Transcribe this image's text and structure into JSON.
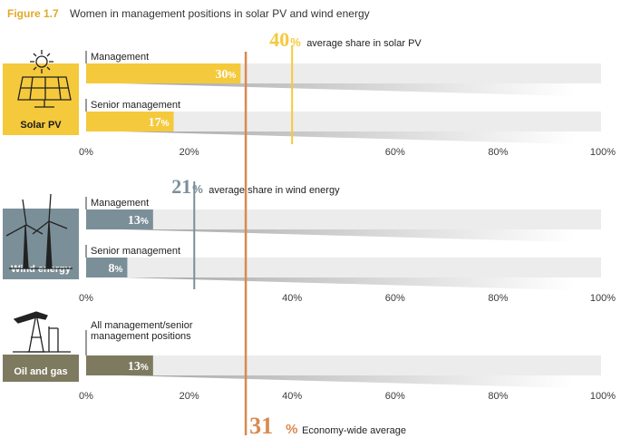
{
  "figure_label": "Figure 1.7",
  "title": "Women in management positions in solar PV and wind energy",
  "colors": {
    "solar": "#f5c93c",
    "wind": "#7b8f99",
    "oil": "#7d7a60",
    "economy": "#d98a4f",
    "track": "#ececec",
    "shadow": "#9a9a9a",
    "axis_text": "#3a3a3a"
  },
  "chart_data": {
    "type": "bar",
    "orientation": "horizontal",
    "xlim": [
      0,
      100
    ],
    "ticks": [
      "0%",
      "20%",
      "40%",
      "60%",
      "80%",
      "100%"
    ],
    "groups": [
      {
        "name": "Solar PV",
        "color_key": "solar",
        "icon": "solar-panel-icon",
        "bars": [
          {
            "label": "Management",
            "value": 30,
            "value_text": "30"
          },
          {
            "label": "Senior management",
            "value": 17,
            "value_text": "17"
          }
        ],
        "reference": {
          "value": 40,
          "value_text": "40",
          "label": "average share in solar PV"
        },
        "hidden_tick": "40%"
      },
      {
        "name": "Wind energy",
        "color_key": "wind",
        "icon": "wind-turbine-icon",
        "bars": [
          {
            "label": "Management",
            "value": 13,
            "value_text": "13"
          },
          {
            "label": "Senior management",
            "value": 8,
            "value_text": "8"
          }
        ],
        "reference": {
          "value": 21,
          "value_text": "21",
          "label": "average share in wind energy"
        },
        "hidden_tick": "20%"
      },
      {
        "name": "Oil and gas",
        "color_key": "oil",
        "icon": "oil-pump-icon",
        "bars": [
          {
            "label": "All management/senior management positions",
            "label_lines": [
              "All management/senior",
              "management positions"
            ],
            "value": 13,
            "value_text": "13"
          }
        ],
        "reference": null,
        "hidden_tick": null
      }
    ],
    "economy_line": {
      "value": 31,
      "value_text": "31",
      "label": "Economy-wide average"
    },
    "percent_sign": "%"
  }
}
